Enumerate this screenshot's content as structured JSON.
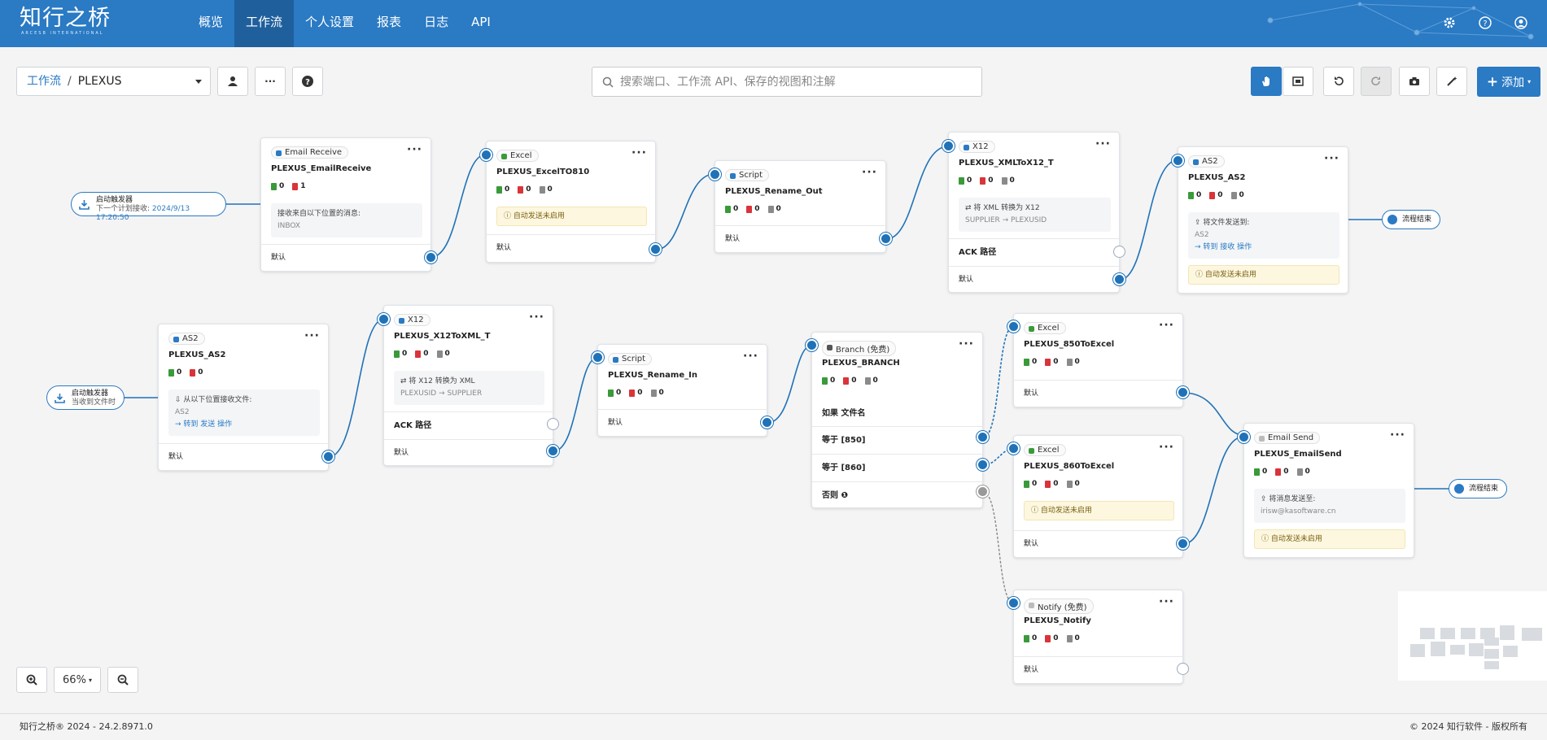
{
  "app": {
    "logo": "知行之桥",
    "logo_sub": "ARCESB INTERNATIONAL"
  },
  "nav": [
    {
      "label": "概览",
      "active": false
    },
    {
      "label": "工作流",
      "active": true
    },
    {
      "label": "个人设置",
      "active": false
    },
    {
      "label": "报表",
      "active": false
    },
    {
      "label": "日志",
      "active": false
    },
    {
      "label": "API",
      "active": false
    }
  ],
  "top_icons": [
    "gear-icon",
    "help-icon",
    "user-icon"
  ],
  "breadcrumb": {
    "link": "工作流",
    "separator": "/",
    "current": "PLEXUS"
  },
  "search": {
    "placeholder": "搜索端口、工作流 API、保存的视图和注解"
  },
  "toolbar": {
    "add_label": "添加"
  },
  "colors": {
    "accent": "#2a7ac4",
    "topbar": "#2a7ac4"
  },
  "triggers": [
    {
      "title": "启动触发器",
      "sub_label": "下一个计划接收:",
      "sub_value": "2024/9/13 17:20:50"
    },
    {
      "title": "启动触发器",
      "sub_label": "当收到文件时",
      "sub_value": ""
    }
  ],
  "end_label": "流程结束",
  "nodes": {
    "email_receive": {
      "type": "Email Receive",
      "name": "PLEXUS_EmailReceive",
      "counts": [
        "0",
        "1"
      ],
      "info_title": "接收来自以下位置的消息:",
      "info_value": "INBOX",
      "row1": "默认"
    },
    "excel_810": {
      "type": "Excel",
      "name": "PLEXUS_ExcelTO810",
      "counts": [
        "0",
        "0",
        "0"
      ],
      "warn": "自动发送未启用",
      "row1": "默认"
    },
    "rename_out": {
      "type": "Script",
      "name": "PLEXUS_Rename_Out",
      "counts": [
        "0",
        "0",
        "0"
      ],
      "row1": "默认"
    },
    "xml_to_x12": {
      "type": "X12",
      "name": "PLEXUS_XMLToX12_T",
      "counts": [
        "0",
        "0",
        "0"
      ],
      "info_title": "将 XML 转换为 X12",
      "info_value": "SUPPLIER → PLEXUSID",
      "row1": "ACK 路径",
      "row2": "默认"
    },
    "as2_out": {
      "type": "AS2",
      "name": "PLEXUS_AS2",
      "counts": [
        "0",
        "0",
        "0"
      ],
      "info_title": "将文件发送到:",
      "info_value": "AS2",
      "info_link": "→ 转到 接收 操作",
      "warn": "自动发送未启用"
    },
    "as2_in": {
      "type": "AS2",
      "name": "PLEXUS_AS2",
      "counts": [
        "0",
        "0"
      ],
      "info_title": "从以下位置接收文件:",
      "info_value": "AS2",
      "info_link": "→ 转到 发送 操作",
      "row1": "默认"
    },
    "x12_to_xml": {
      "type": "X12",
      "name": "PLEXUS_X12ToXML_T",
      "counts": [
        "0",
        "0",
        "0"
      ],
      "info_title": "将 X12 转换为 XML",
      "info_value": "PLEXUSID → SUPPLIER",
      "row1": "ACK 路径",
      "row2": "默认"
    },
    "rename_in": {
      "type": "Script",
      "name": "PLEXUS_Rename_In",
      "counts": [
        "0",
        "0",
        "0"
      ],
      "row1": "默认"
    },
    "branch": {
      "type": "Branch (免费)",
      "name": "PLEXUS_BRANCH",
      "counts": [
        "0",
        "0",
        "0"
      ],
      "cond": "如果 文件名",
      "row1": "等于 [850]",
      "row2": "等于 [860]",
      "row3": "否则"
    },
    "excel_850": {
      "type": "Excel",
      "name": "PLEXUS_850ToExcel",
      "counts": [
        "0",
        "0",
        "0"
      ],
      "row1": "默认"
    },
    "excel_860": {
      "type": "Excel",
      "name": "PLEXUS_860ToExcel",
      "counts": [
        "0",
        "0",
        "0"
      ],
      "warn": "自动发送未启用",
      "row1": "默认"
    },
    "email_send": {
      "type": "Email Send",
      "name": "PLEXUS_EmailSend",
      "counts": [
        "0",
        "0",
        "0"
      ],
      "info_title": "将消息发送至:",
      "info_value": "irisw@kasoftware.cn",
      "warn": "自动发送未启用"
    },
    "notify": {
      "type": "Notify (免费)",
      "name": "PLEXUS_Notify",
      "counts": [
        "0",
        "0",
        "0"
      ],
      "row1": "默认"
    }
  },
  "zoom": {
    "level": "66%"
  },
  "footer": {
    "left": "知行之桥® 2024 - 24.2.8971.0",
    "right": "© 2024 知行软件 - 版权所有"
  }
}
